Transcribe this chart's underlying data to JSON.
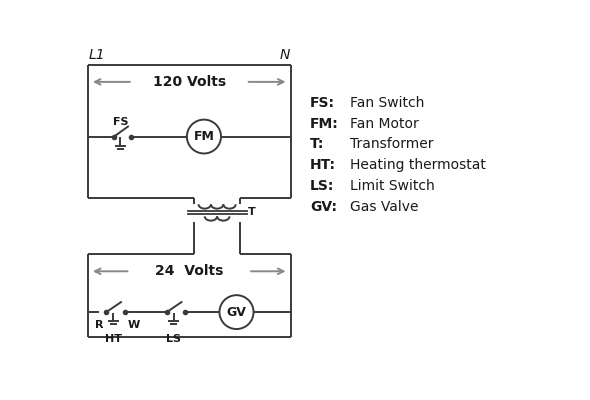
{
  "bg_color": "#ffffff",
  "line_color": "#3a3a3a",
  "arrow_color": "#888888",
  "text_color": "#1a1a1a",
  "legend_items": [
    [
      "FS:",
      "Fan Switch"
    ],
    [
      "FM:",
      "Fan Motor"
    ],
    [
      "T:",
      "Transformer"
    ],
    [
      "HT:",
      "Heating thermostat"
    ],
    [
      "LS:",
      "Limit Switch"
    ],
    [
      "GV:",
      "Gas Valve"
    ]
  ],
  "L1_label": "L1",
  "N_label": "N",
  "v120_label": "120 Volts",
  "v24_label": "24  Volts",
  "T_label": "T",
  "FS_label": "FS",
  "FM_label": "FM",
  "R_label": "R",
  "W_label": "W",
  "HT_label": "HT",
  "LS_label": "LS",
  "GV_label": "GV"
}
